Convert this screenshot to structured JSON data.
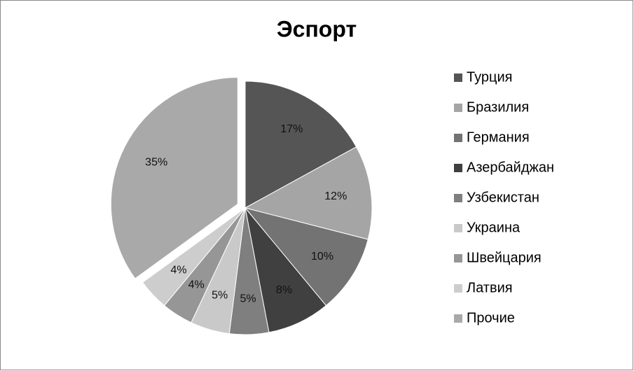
{
  "chart_data": {
    "type": "pie",
    "title": "Эспорт",
    "categories": [
      "Турция",
      "Бразилия",
      "Германия",
      "Азербайджан",
      "Узбекистан",
      "Украина",
      "Швейцария",
      "Латвия",
      "Прочие"
    ],
    "values": [
      17,
      12,
      10,
      8,
      5,
      5,
      4,
      4,
      35
    ],
    "value_labels": [
      "17%",
      "12%",
      "10%",
      "8%",
      "5%",
      "5%",
      "4%",
      "4%",
      "35%"
    ],
    "colors": [
      "#555555",
      "#a5a5a5",
      "#737373",
      "#404040",
      "#7f7f7f",
      "#c9c9c9",
      "#969696",
      "#cdcdcd",
      "#a9a9a9"
    ],
    "explode": [
      false,
      false,
      false,
      false,
      false,
      false,
      false,
      false,
      true
    ],
    "legend": "right"
  }
}
